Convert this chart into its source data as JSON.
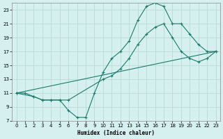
{
  "xlabel": "Humidex (Indice chaleur)",
  "bg_color": "#d6f0f0",
  "grid_color": "#b8dada",
  "line_color": "#1a7a6a",
  "xlim": [
    -0.5,
    23.5
  ],
  "ylim": [
    7,
    24
  ],
  "xticks": [
    0,
    1,
    2,
    3,
    4,
    5,
    6,
    7,
    8,
    9,
    10,
    11,
    12,
    13,
    14,
    15,
    16,
    17,
    18,
    19,
    20,
    21,
    22,
    23
  ],
  "yticks": [
    7,
    9,
    11,
    13,
    15,
    17,
    19,
    21,
    23
  ],
  "line1_x": [
    0,
    1,
    2,
    3,
    4,
    5,
    6,
    7,
    8,
    9,
    10,
    11,
    12,
    13,
    14,
    15,
    16,
    17,
    18,
    19,
    20,
    21,
    22,
    23
  ],
  "line1_y": [
    11,
    11,
    10.5,
    10,
    10,
    10,
    8.5,
    7.5,
    7.5,
    11,
    14,
    16,
    17,
    18.5,
    21.5,
    23.5,
    24,
    23.5,
    21,
    21,
    19.5,
    18,
    17,
    17
  ],
  "line2_x": [
    0,
    2,
    3,
    4,
    5,
    6,
    10,
    11,
    12,
    13,
    14,
    15,
    16,
    17,
    18,
    19,
    20,
    21,
    22,
    23
  ],
  "line2_y": [
    11,
    10.5,
    10,
    10,
    10,
    10,
    13,
    13.5,
    14.5,
    16,
    18,
    19.5,
    20.5,
    21,
    19,
    17,
    16,
    15.5,
    16,
    17
  ],
  "line3_x": [
    0,
    23
  ],
  "line3_y": [
    11,
    17
  ]
}
